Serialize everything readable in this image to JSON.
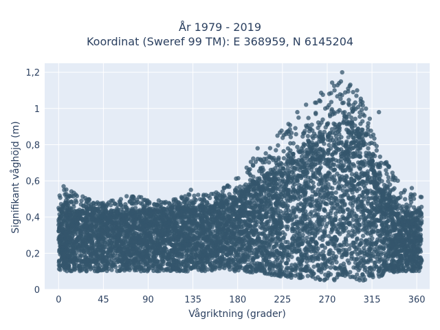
{
  "chart_data": {
    "type": "scatter",
    "title_lines": [
      "År 1979 - 2019",
      "Koordinat (Sweref 99 TM): E 368959, N 6145204"
    ],
    "xlabel": "Vågriktning (grader)",
    "ylabel": "Signifikant våghöjd (m)",
    "xlim": [
      -14,
      373
    ],
    "ylim": [
      0,
      1.25
    ],
    "x_ticks": [
      0,
      45,
      90,
      135,
      180,
      225,
      270,
      315,
      360
    ],
    "x_tick_labels": [
      "0",
      "45",
      "90",
      "135",
      "180",
      "225",
      "270",
      "315",
      "360"
    ],
    "y_ticks": [
      0,
      0.2,
      0.4,
      0.6,
      0.8,
      1,
      1.2
    ],
    "y_tick_labels": [
      "0",
      "0,2",
      "0,4",
      "0,6",
      "0,8",
      "1",
      "1,2"
    ],
    "grid": true,
    "marker_color": "#34566c",
    "plot_bg": "#e5ecf6",
    "envelope": {
      "direction": [
        0,
        10,
        20,
        30,
        45,
        60,
        75,
        90,
        105,
        120,
        135,
        150,
        165,
        180,
        195,
        210,
        225,
        240,
        255,
        270,
        285,
        295,
        305,
        315,
        325,
        335,
        345,
        360
      ],
      "upper_dense": [
        0.45,
        0.44,
        0.43,
        0.43,
        0.43,
        0.42,
        0.43,
        0.44,
        0.44,
        0.45,
        0.45,
        0.46,
        0.48,
        0.52,
        0.58,
        0.64,
        0.7,
        0.76,
        0.83,
        0.88,
        0.92,
        0.92,
        0.85,
        0.72,
        0.6,
        0.5,
        0.44,
        0.42
      ],
      "upper_max": [
        0.58,
        0.55,
        0.53,
        0.5,
        0.48,
        0.5,
        0.53,
        0.5,
        0.49,
        0.5,
        0.55,
        0.52,
        0.56,
        0.62,
        0.72,
        0.82,
        0.9,
        0.98,
        1.05,
        1.12,
        1.2,
        1.15,
        1.05,
        0.93,
        0.75,
        0.65,
        0.58,
        0.52
      ],
      "lower": [
        0.1,
        0.1,
        0.1,
        0.1,
        0.1,
        0.1,
        0.1,
        0.1,
        0.1,
        0.1,
        0.1,
        0.1,
        0.1,
        0.1,
        0.09,
        0.08,
        0.07,
        0.06,
        0.05,
        0.05,
        0.05,
        0.05,
        0.05,
        0.05,
        0.07,
        0.09,
        0.1,
        0.1
      ]
    },
    "highlight_points": [
      {
        "x": 285,
        "y": 1.2
      },
      {
        "x": 282,
        "y": 1.14
      },
      {
        "x": 300,
        "y": 1.1
      },
      {
        "x": 263,
        "y": 1.04
      },
      {
        "x": 268,
        "y": 1.0
      },
      {
        "x": 240,
        "y": 0.98
      },
      {
        "x": 322,
        "y": 0.98
      },
      {
        "x": 220,
        "y": 0.85
      },
      {
        "x": 200,
        "y": 0.78
      },
      {
        "x": 332,
        "y": 0.68
      },
      {
        "x": 5,
        "y": 0.57
      },
      {
        "x": 133,
        "y": 0.55
      },
      {
        "x": 355,
        "y": 0.56
      }
    ]
  }
}
